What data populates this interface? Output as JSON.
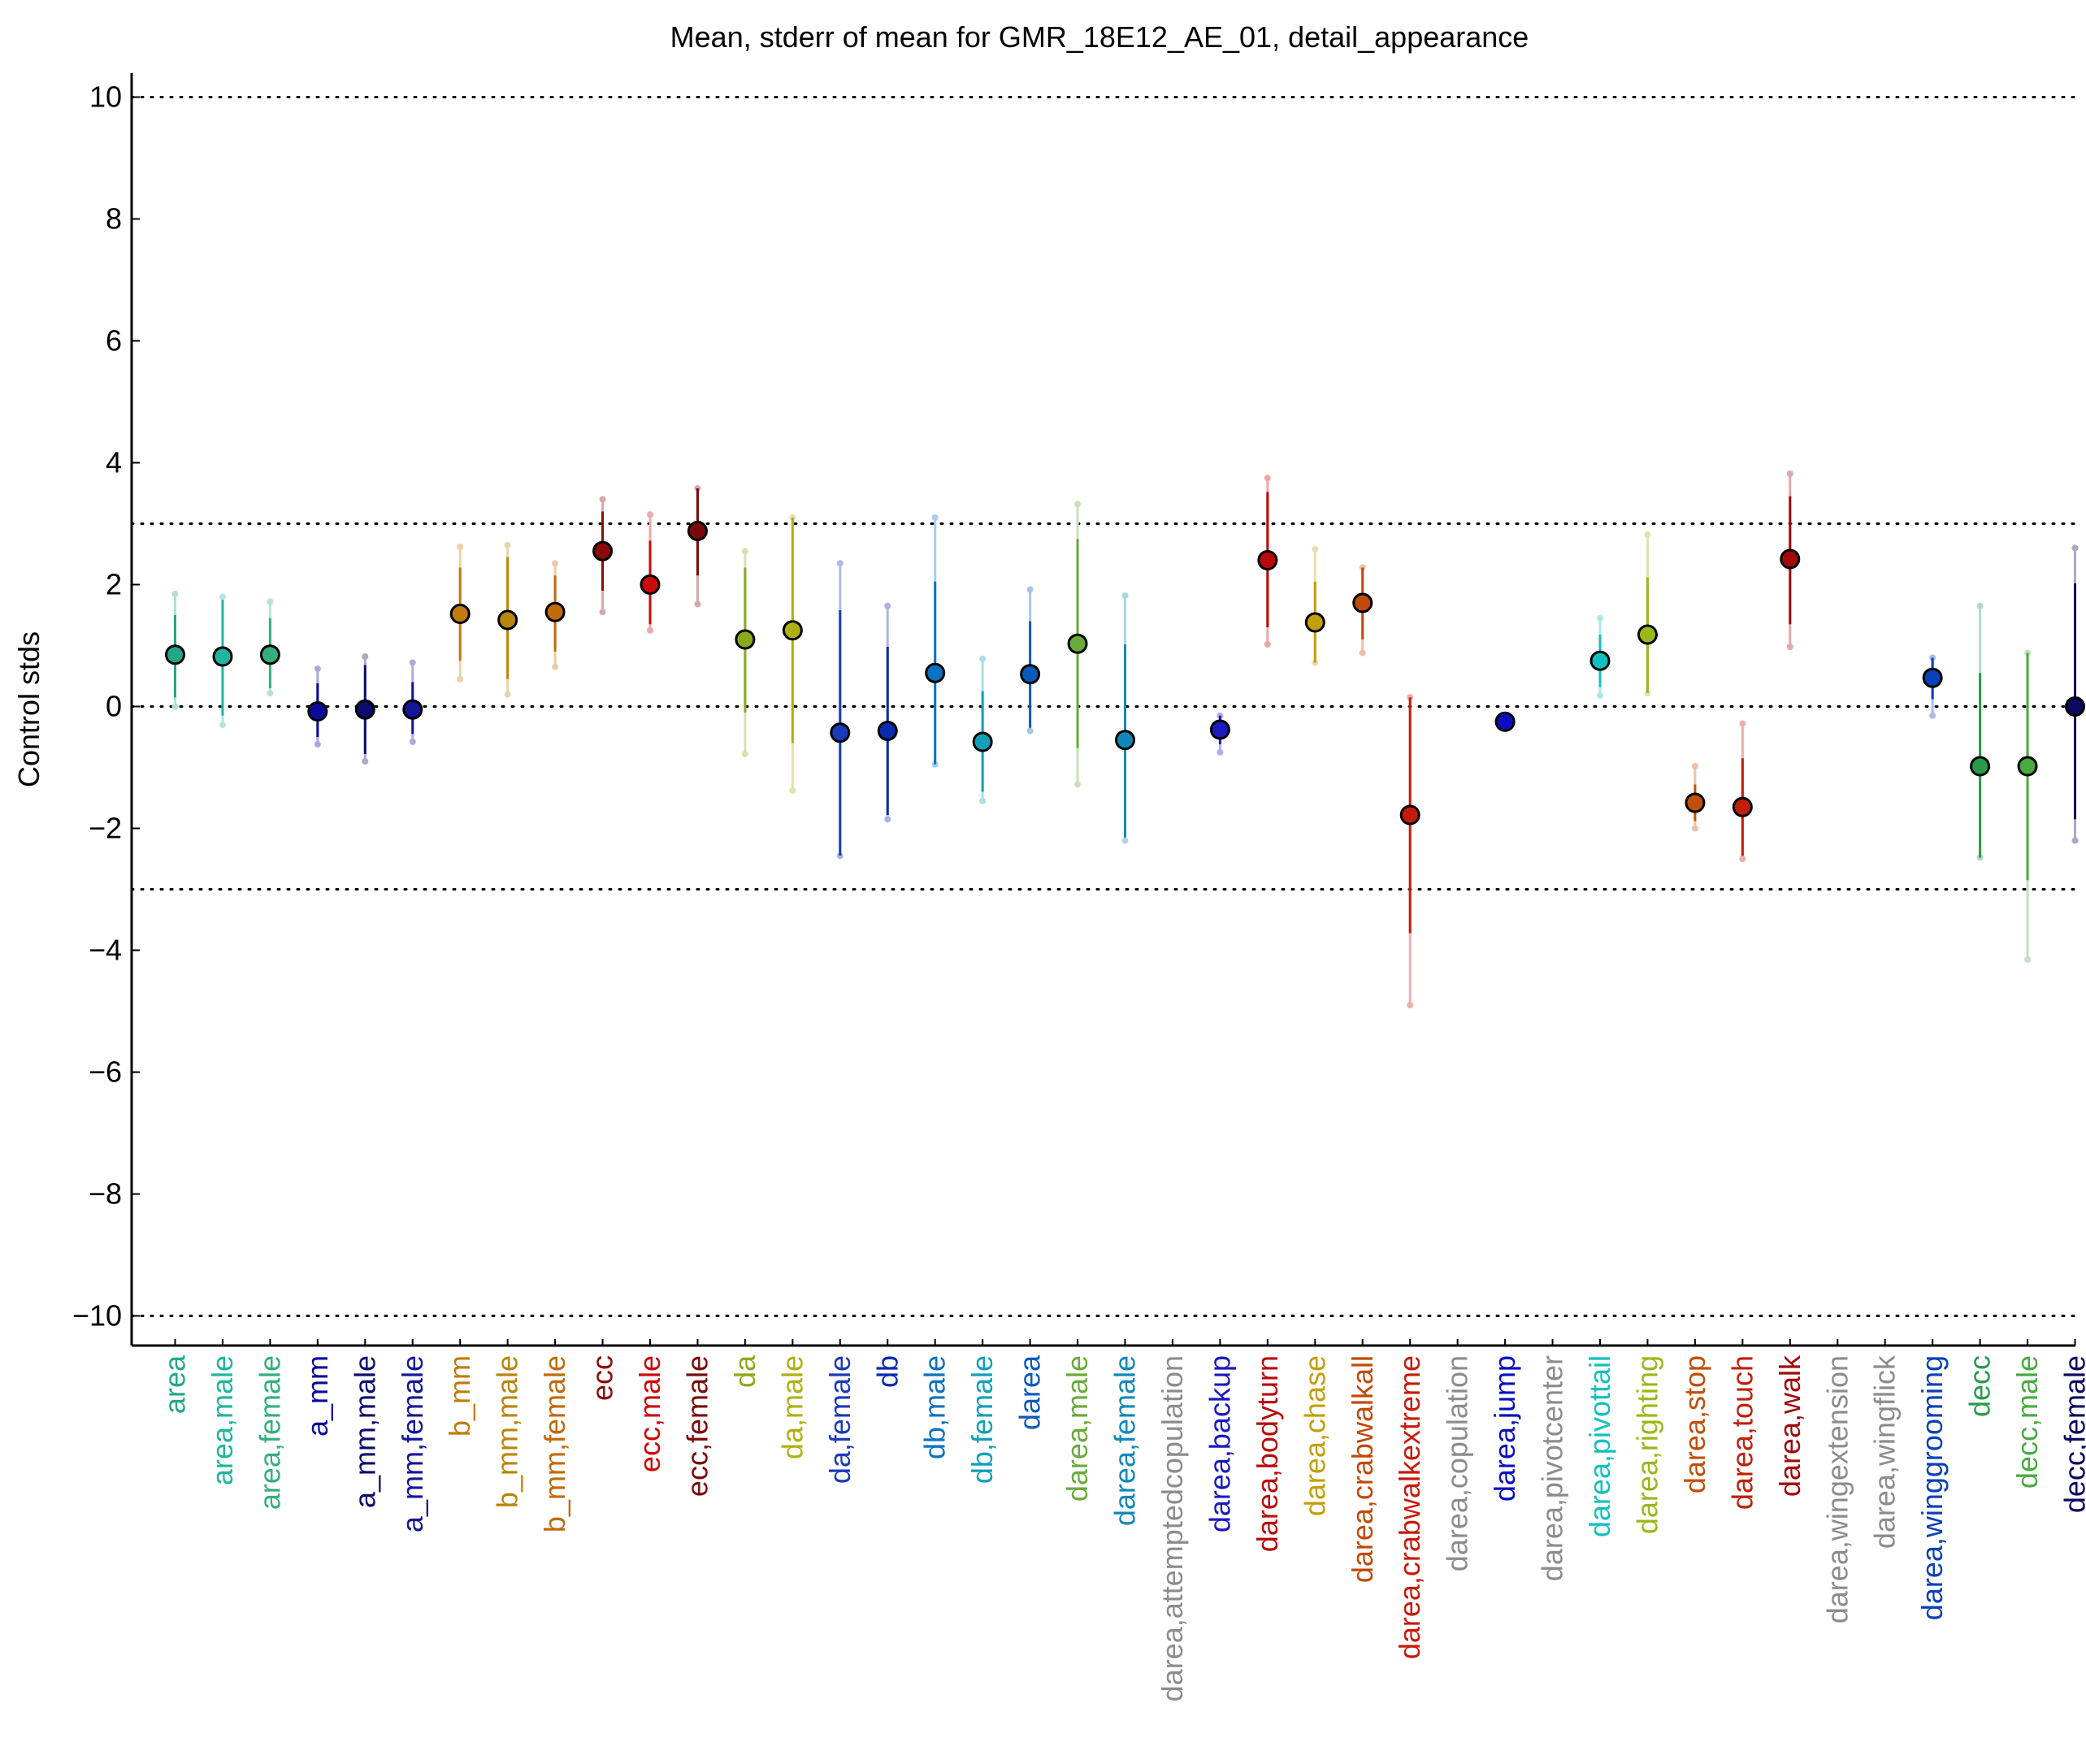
{
  "chart_data": {
    "type": "scatter",
    "title": "Mean, stderr of mean for GMR_18E12_AE_01, detail_appearance",
    "xlabel": "",
    "ylabel": "Control stds",
    "ylim": [
      -10.2,
      10.2
    ],
    "yticks": [
      10,
      8,
      6,
      4,
      2,
      0,
      -2,
      -4,
      -6,
      -8,
      -10
    ],
    "ytick_labels": [
      "10",
      "8",
      "6",
      "4",
      "2",
      "0",
      "−2",
      "−4",
      "−6",
      "−8",
      "−10"
    ],
    "reference_lines": [
      10,
      3,
      0,
      -3,
      -10
    ],
    "grid": false,
    "legend": "none",
    "points": [
      {
        "label": "area",
        "color": "#22a889",
        "mean": 0.85,
        "err_low": 0.15,
        "err_high": 1.5,
        "range_low": 0.0,
        "range_high": 1.85
      },
      {
        "label": "area,male",
        "color": "#1fb5a0",
        "mean": 0.82,
        "err_low": -0.15,
        "err_high": 1.75,
        "range_low": -0.3,
        "range_high": 1.8
      },
      {
        "label": "area,female",
        "color": "#33b07a",
        "mean": 0.85,
        "err_low": 0.3,
        "err_high": 1.45,
        "range_low": 0.22,
        "range_high": 1.72
      },
      {
        "label": "a_mm",
        "color": "#0a0a9c",
        "mean": -0.08,
        "err_low": -0.5,
        "err_high": 0.38,
        "range_low": -0.62,
        "range_high": 0.62
      },
      {
        "label": "a_mm,male",
        "color": "#0c0c70",
        "mean": -0.05,
        "err_low": -0.78,
        "err_high": 0.68,
        "range_low": -0.9,
        "range_high": 0.82
      },
      {
        "label": "a_mm,female",
        "color": "#16169a",
        "mean": -0.05,
        "err_low": -0.45,
        "err_high": 0.4,
        "range_low": -0.58,
        "range_high": 0.72
      },
      {
        "label": "b_mm",
        "color": "#c07c0a",
        "mean": 1.52,
        "err_low": 0.75,
        "err_high": 2.28,
        "range_low": 0.45,
        "range_high": 2.62
      },
      {
        "label": "b_mm,male",
        "color": "#b8860b",
        "mean": 1.42,
        "err_low": 0.45,
        "err_high": 2.45,
        "range_low": 0.2,
        "range_high": 2.65
      },
      {
        "label": "b_mm,female",
        "color": "#c06a0a",
        "mean": 1.55,
        "err_low": 0.9,
        "err_high": 2.15,
        "range_low": 0.65,
        "range_high": 2.35
      },
      {
        "label": "ecc",
        "color": "#8b0a0a",
        "mean": 2.55,
        "err_low": 1.9,
        "err_high": 3.2,
        "range_low": 1.55,
        "range_high": 3.4
      },
      {
        "label": "ecc,male",
        "color": "#cc0a0a",
        "mean": 2.0,
        "err_low": 1.35,
        "err_high": 2.72,
        "range_low": 1.25,
        "range_high": 3.15
      },
      {
        "label": "ecc,female",
        "color": "#7a0a0a",
        "mean": 2.88,
        "err_low": 2.15,
        "err_high": 3.58,
        "range_low": 1.68,
        "range_high": 3.58
      },
      {
        "label": "da",
        "color": "#8aaa1a",
        "mean": 1.1,
        "err_low": -0.1,
        "err_high": 2.28,
        "range_low": -0.78,
        "range_high": 2.55
      },
      {
        "label": "da,male",
        "color": "#b0b010",
        "mean": 1.25,
        "err_low": -0.6,
        "err_high": 3.1,
        "range_low": -1.38,
        "range_high": 3.1
      },
      {
        "label": "da,female",
        "color": "#1a3abb",
        "mean": -0.43,
        "err_low": -2.45,
        "err_high": 1.58,
        "range_low": -2.45,
        "range_high": 2.35
      },
      {
        "label": "db",
        "color": "#0a2ab0",
        "mean": -0.4,
        "err_low": -1.78,
        "err_high": 0.98,
        "range_low": -1.85,
        "range_high": 1.65
      },
      {
        "label": "db,male",
        "color": "#0a72c0",
        "mean": 0.55,
        "err_low": -0.95,
        "err_high": 2.05,
        "range_low": -0.95,
        "range_high": 3.1
      },
      {
        "label": "db,female",
        "color": "#12a0b8",
        "mean": -0.58,
        "err_low": -1.4,
        "err_high": 0.25,
        "range_low": -1.55,
        "range_high": 0.78
      },
      {
        "label": "darea",
        "color": "#0a5ab8",
        "mean": 0.53,
        "err_low": -0.35,
        "err_high": 1.4,
        "range_low": -0.4,
        "range_high": 1.92
      },
      {
        "label": "darea,male",
        "color": "#6aaa3a",
        "mean": 1.03,
        "err_low": -0.68,
        "err_high": 2.75,
        "range_low": -1.28,
        "range_high": 3.32
      },
      {
        "label": "darea,female",
        "color": "#1288b8",
        "mean": -0.55,
        "err_low": -2.15,
        "err_high": 1.02,
        "range_low": -2.2,
        "range_high": 1.82
      },
      {
        "label": "darea,attemptedcopulation",
        "color": "#8c8c8c",
        "mean": null
      },
      {
        "label": "darea,backup",
        "color": "#1a1ac0",
        "mean": -0.38,
        "err_low": -0.62,
        "err_high": -0.15,
        "range_low": -0.75,
        "range_high": -0.15
      },
      {
        "label": "darea,bodyturn",
        "color": "#b80a0a",
        "mean": 2.4,
        "err_low": 1.3,
        "err_high": 3.52,
        "range_low": 1.02,
        "range_high": 3.75
      },
      {
        "label": "darea,chase",
        "color": "#c0a00a",
        "mean": 1.38,
        "err_low": 0.72,
        "err_high": 2.05,
        "range_low": 0.72,
        "range_high": 2.58
      },
      {
        "label": "darea,crabwalkall",
        "color": "#c04a0a",
        "mean": 1.7,
        "err_low": 1.1,
        "err_high": 2.28,
        "range_low": 0.88,
        "range_high": 2.28
      },
      {
        "label": "darea,crabwalkextreme",
        "color": "#c81a0a",
        "mean": -1.78,
        "err_low": -3.72,
        "err_high": 0.15,
        "range_low": -4.9,
        "range_high": 0.15
      },
      {
        "label": "darea,copulation",
        "color": "#8c8c8c",
        "mean": null
      },
      {
        "label": "darea,jump",
        "color": "#0a10c0",
        "mean": -0.25,
        "err_low": -0.25,
        "err_high": -0.25,
        "range_low": -0.25,
        "range_high": -0.25
      },
      {
        "label": "darea,pivotcenter",
        "color": "#8c8c8c",
        "mean": null
      },
      {
        "label": "darea,pivottail",
        "color": "#12c0c0",
        "mean": 0.75,
        "err_low": 0.32,
        "err_high": 1.18,
        "range_low": 0.18,
        "range_high": 1.45
      },
      {
        "label": "darea,righting",
        "color": "#9ab81a",
        "mean": 1.18,
        "err_low": 0.22,
        "err_high": 2.12,
        "range_low": 0.22,
        "range_high": 2.82
      },
      {
        "label": "darea,stop",
        "color": "#c0500a",
        "mean": -1.58,
        "err_low": -1.88,
        "err_high": -1.28,
        "range_low": -2.0,
        "range_high": -0.98
      },
      {
        "label": "darea,touch",
        "color": "#c0200a",
        "mean": -1.65,
        "err_low": -2.45,
        "err_high": -0.85,
        "range_low": -2.5,
        "range_high": -0.28
      },
      {
        "label": "darea,walk",
        "color": "#a00a0a",
        "mean": 2.42,
        "err_low": 1.35,
        "err_high": 3.45,
        "range_low": 0.98,
        "range_high": 3.82
      },
      {
        "label": "darea,wingextension",
        "color": "#8c8c8c",
        "mean": null
      },
      {
        "label": "darea,wingflick",
        "color": "#8c8c8c",
        "mean": null
      },
      {
        "label": "darea,winggrooming",
        "color": "#0a40b8",
        "mean": 0.47,
        "err_low": 0.12,
        "err_high": 0.8,
        "range_low": -0.15,
        "range_high": 0.8
      },
      {
        "label": "decc",
        "color": "#2a9a4a",
        "mean": -0.98,
        "err_low": -2.48,
        "err_high": 0.55,
        "range_low": -2.48,
        "range_high": 1.65
      },
      {
        "label": "decc,male",
        "color": "#4aaa40",
        "mean": -0.98,
        "err_low": -2.85,
        "err_high": 0.88,
        "range_low": -4.15,
        "range_high": 0.88
      },
      {
        "label": "decc,female",
        "color": "#0a0a60",
        "mean": 0.0,
        "err_low": -1.85,
        "err_high": 2.02,
        "range_low": -2.2,
        "range_high": 2.6
      }
    ]
  }
}
